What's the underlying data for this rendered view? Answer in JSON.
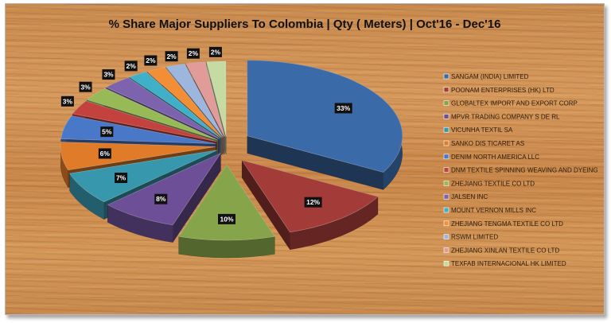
{
  "chart_data": {
    "type": "pie",
    "title": "% Share Major Suppliers To Colombia | Qty ( Meters) | Oct'16 - Dec'16",
    "legend_position": "right",
    "exploded": true,
    "three_d": true,
    "slices": [
      {
        "name": "SANGAM (INDIA) LIMITED",
        "value": 33,
        "label": "33%",
        "color": "#3b6aa8"
      },
      {
        "name": "POONAM ENTERPRISES  (HK) LTD",
        "value": 12,
        "label": "12%",
        "color": "#a33b38"
      },
      {
        "name": "GLOBALTEX IMPORT AND EXPORT CORP",
        "value": 10,
        "label": "10%",
        "color": "#86a44a"
      },
      {
        "name": "MPVR TRADING COMPANY S DE RL",
        "value": 8,
        "label": "8%",
        "color": "#6c4f96"
      },
      {
        "name": "VICUNHA TEXTIL  SA",
        "value": 7,
        "label": "7%",
        "color": "#3798ad"
      },
      {
        "name": "SANKO DIS TICARET  AS",
        "value": 6,
        "label": "6%",
        "color": "#e07b29"
      },
      {
        "name": "DENIM  NORTH  AMERICA  LLC",
        "value": 5,
        "label": "5%",
        "color": "#4a78c8"
      },
      {
        "name": "DNM TEXTILE  SPINNING  WEAVING  AND  DYEING",
        "value": 3,
        "label": "3%",
        "color": "#c4423e"
      },
      {
        "name": "ZHEJIANG TEXTILE  CO LTD",
        "value": 3,
        "label": "3%",
        "color": "#98ba56"
      },
      {
        "name": "JALSEN INC",
        "value": 3,
        "label": "3%",
        "color": "#7d62ad"
      },
      {
        "name": "MOUNT  VERNON  MILLS INC",
        "value": 2,
        "label": "2%",
        "color": "#3fb0c8"
      },
      {
        "name": "ZHEJIANG  TENGMA  TEXTILE  CO LTD",
        "value": 2,
        "label": "2%",
        "color": "#f28e35"
      },
      {
        "name": "RSWM LIMITED",
        "value": 2,
        "label": "2%",
        "color": "#9cb6de"
      },
      {
        "name": "ZHEJIANG  XINLAN  TEXTILE  CO LTD",
        "value": 2,
        "label": "2%",
        "color": "#e19c99"
      },
      {
        "name": "TEXFAB INTERNACIONAL  HK LIMITED",
        "value": 2,
        "label": "2%",
        "color": "#c6dba2"
      }
    ]
  }
}
